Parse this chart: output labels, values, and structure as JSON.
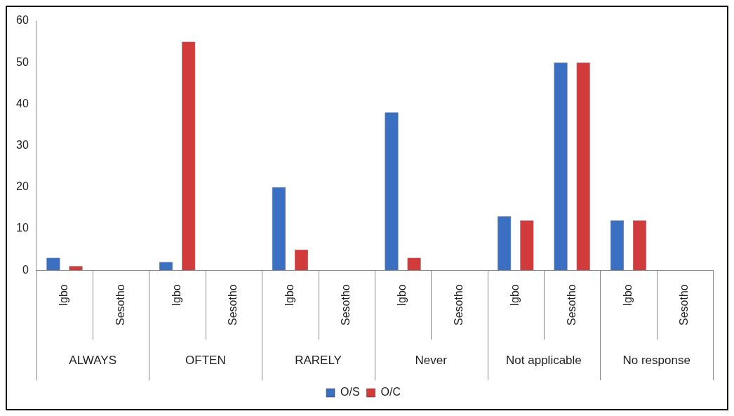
{
  "chart_data": {
    "type": "bar",
    "categories": [
      "Igbo",
      "Sesotho",
      "Igbo",
      "Sesotho",
      "Igbo",
      "Sesotho",
      "Igbo",
      "Sesotho",
      "Igbo",
      "Sesotho",
      "Igbo",
      "Sesotho"
    ],
    "annotations": [
      "ALWAYS",
      "OFTEN",
      "RARELY",
      "Never",
      "Not applicable",
      "No response"
    ],
    "series": [
      {
        "name": "O/S",
        "color": "#3b6fc2",
        "values": [
          3,
          null,
          2,
          null,
          20,
          null,
          38,
          null,
          13,
          50,
          12,
          null
        ]
      },
      {
        "name": "O/C",
        "color": "#d23b3b",
        "values": [
          1,
          null,
          55,
          null,
          5,
          null,
          3,
          null,
          12,
          50,
          12,
          null
        ]
      }
    ],
    "ylim": [
      0,
      60
    ],
    "yticks": [
      0,
      10,
      20,
      30,
      40,
      50,
      60
    ],
    "grid": false,
    "legend": "bottom"
  }
}
